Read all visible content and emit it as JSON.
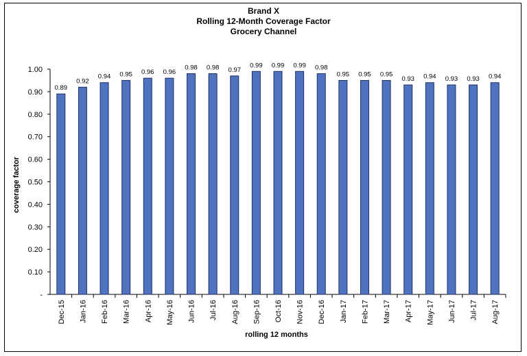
{
  "chart_data": {
    "type": "bar",
    "title_lines": [
      "Brand X",
      "Rolling 12-Month Coverage Factor",
      "Grocery Channel"
    ],
    "xlabel": "rolling 12 months",
    "ylabel": "coverage factor",
    "ylim": [
      0,
      1.0
    ],
    "yticks": [
      0,
      0.1,
      0.2,
      0.3,
      0.4,
      0.5,
      0.6,
      0.7,
      0.8,
      0.9,
      1.0
    ],
    "ytick_labels": [
      "-",
      "0.10",
      "0.20",
      "0.30",
      "0.40",
      "0.50",
      "0.60",
      "0.70",
      "0.80",
      "0.90",
      "1.00"
    ],
    "categories": [
      "Dec-15",
      "Jan-16",
      "Feb-16",
      "Mar-16",
      "Apr-16",
      "May-16",
      "Jun-16",
      "Jul-16",
      "Aug-16",
      "Sep-16",
      "Oct-16",
      "Nov-16",
      "Dec-16",
      "Jan-17",
      "Feb-17",
      "Mar-17",
      "Apr-17",
      "May-17",
      "Jun-17",
      "Jul-17",
      "Aug-17"
    ],
    "values": [
      0.89,
      0.92,
      0.94,
      0.95,
      0.96,
      0.96,
      0.98,
      0.98,
      0.97,
      0.99,
      0.99,
      0.99,
      0.98,
      0.95,
      0.95,
      0.95,
      0.93,
      0.94,
      0.93,
      0.93,
      0.94
    ],
    "value_labels": [
      "0.89",
      "0.92",
      "0.94",
      "0.95",
      "0.96",
      "0.96",
      "0.98",
      "0.98",
      "0.97",
      "0.99",
      "0.99",
      "0.99",
      "0.98",
      "0.95",
      "0.95",
      "0.95",
      "0.93",
      "0.94",
      "0.93",
      "0.93",
      "0.94"
    ],
    "bar_color": "#4f73be",
    "bar_edge_color": "#1f2f66",
    "grid": false,
    "legend": "none"
  }
}
